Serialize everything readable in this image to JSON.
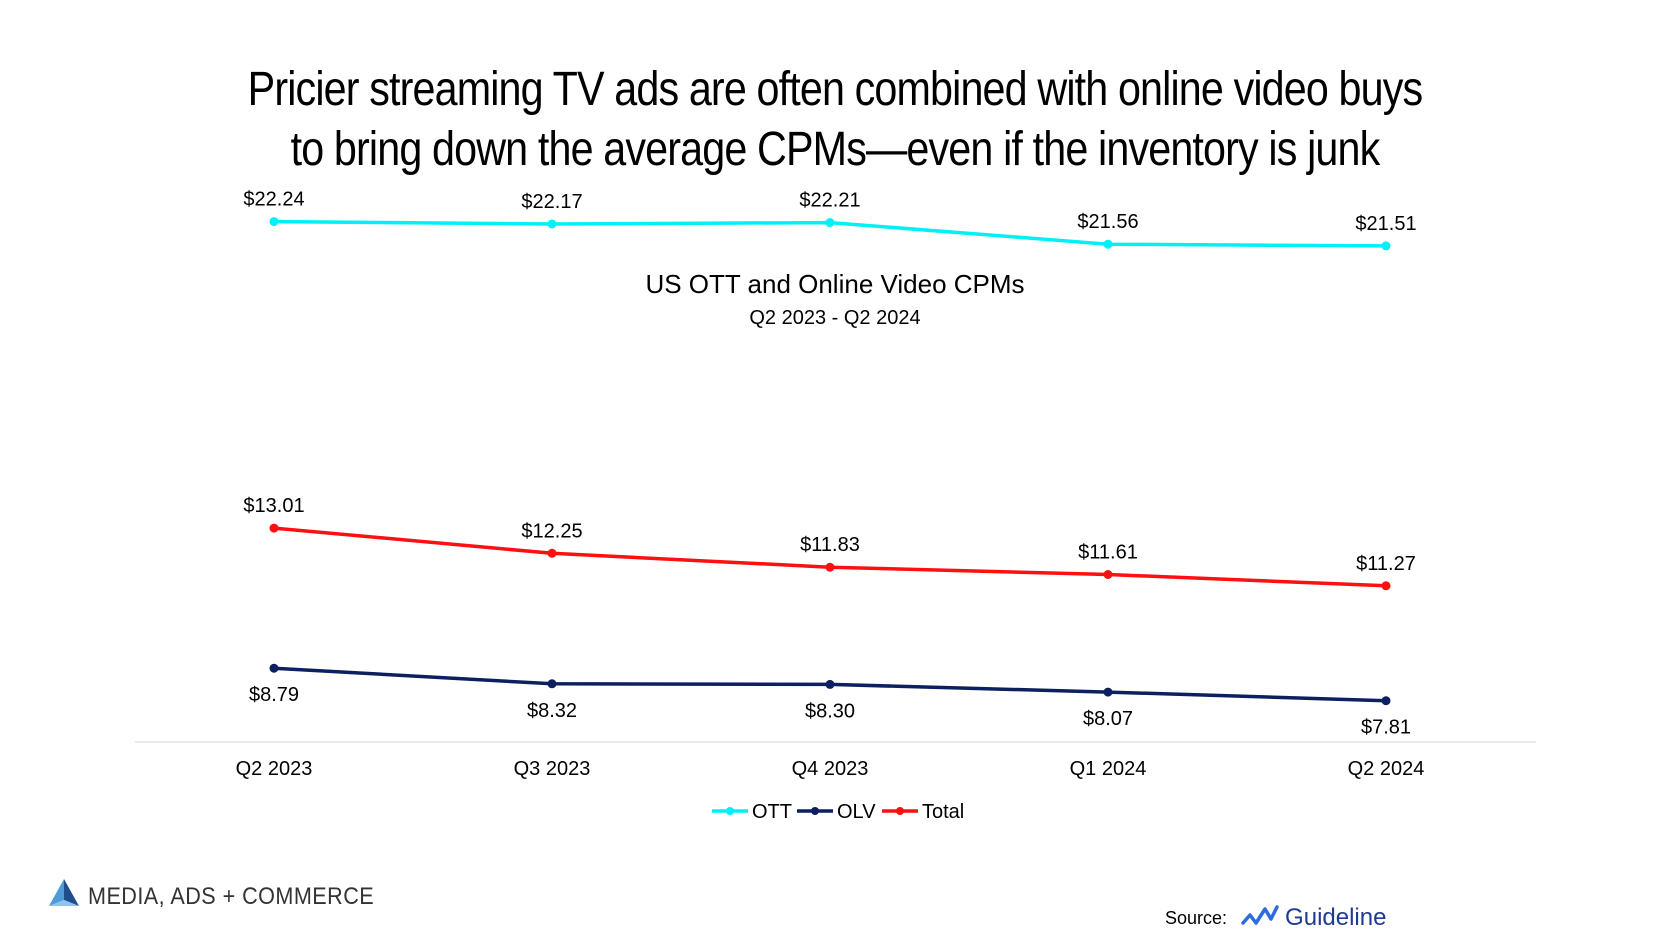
{
  "headline": {
    "line1": "Pricier streaming TV ads are often combined with online video buys",
    "line2": "to bring down the average CPMs—even if the inventory is junk"
  },
  "chart_data": {
    "type": "line",
    "title": "US OTT and Online Video CPMs",
    "subtitle": "Q2 2023 - Q2 2024",
    "categories": [
      "Q2 2023",
      "Q3 2023",
      "Q4 2023",
      "Q1 2024",
      "Q2 2024"
    ],
    "series": [
      {
        "name": "OTT",
        "color": "#00f0f8",
        "values": [
          22.24,
          22.17,
          22.21,
          21.56,
          21.51
        ],
        "labels": [
          "$22.24",
          "$22.17",
          "$22.21",
          "$21.56",
          "$21.51"
        ],
        "label_position": "above"
      },
      {
        "name": "Total",
        "color": "#ff1010",
        "values": [
          13.01,
          12.25,
          11.83,
          11.61,
          11.27
        ],
        "labels": [
          "$13.01",
          "$12.25",
          "$11.83",
          "$11.61",
          "$11.27"
        ],
        "label_position": "above"
      },
      {
        "name": "OLV",
        "color": "#0c2060",
        "values": [
          8.79,
          8.32,
          8.3,
          8.07,
          7.81
        ],
        "labels": [
          "$8.79",
          "$8.32",
          "$8.30",
          "$8.07",
          "$7.81"
        ],
        "label_position": "below"
      }
    ],
    "legend_order": [
      "OTT",
      "OLV",
      "Total"
    ],
    "legend_position": "bottom-center",
    "ylim": [
      0,
      25
    ],
    "grid": false
  },
  "branding": {
    "logo_text": "MEDIA, ADS + COMMERCE",
    "logo_icon": "triangle-logo-icon"
  },
  "source": {
    "label": "Source:",
    "name": "Guideline",
    "icon": "guideline-wave-icon"
  }
}
